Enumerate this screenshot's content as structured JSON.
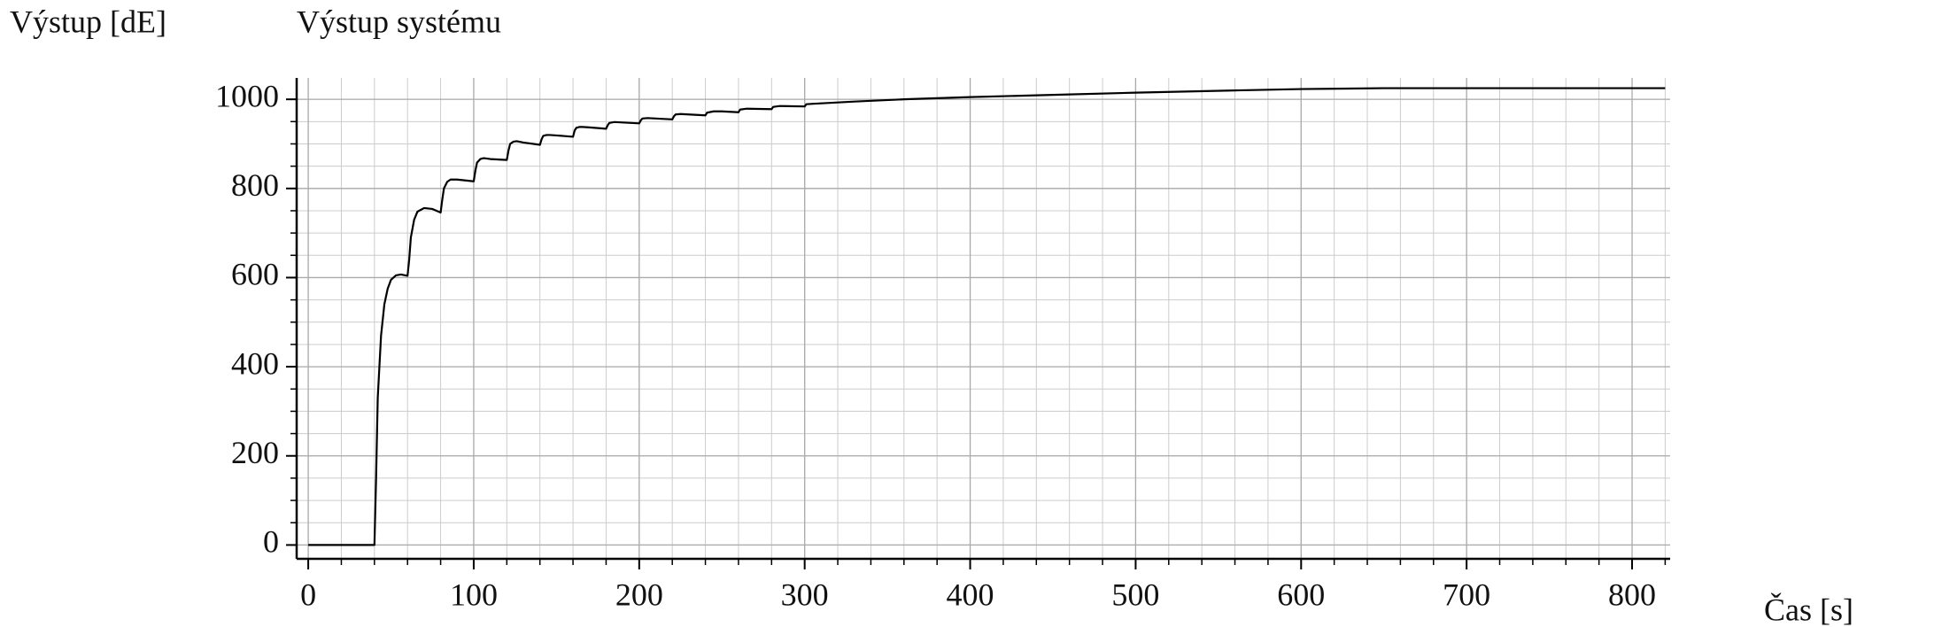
{
  "chart_data": {
    "type": "line",
    "title": "Výstup systému",
    "y_label": "Výstup [dE]",
    "x_label": "Čas [s]",
    "x": [
      0,
      40,
      41,
      42,
      44,
      46,
      48,
      50,
      53,
      56,
      60,
      61,
      62,
      64,
      66,
      70,
      75,
      80,
      81,
      82,
      84,
      86,
      90,
      95,
      100,
      101,
      102,
      104,
      106,
      110,
      120,
      121,
      122,
      124,
      126,
      130,
      140,
      141,
      142,
      144,
      146,
      150,
      160,
      161,
      162,
      164,
      166,
      170,
      180,
      181,
      182,
      185,
      190,
      200,
      201,
      202,
      205,
      210,
      220,
      221,
      222,
      225,
      230,
      240,
      241,
      245,
      250,
      260,
      261,
      265,
      280,
      281,
      285,
      300,
      301,
      305,
      330,
      360,
      400,
      450,
      500,
      560,
      600,
      650,
      700,
      820
    ],
    "values": [
      0,
      0,
      150,
      330,
      470,
      540,
      575,
      595,
      605,
      607,
      604,
      640,
      690,
      730,
      748,
      756,
      754,
      746,
      775,
      800,
      815,
      820,
      820,
      818,
      816,
      840,
      858,
      866,
      868,
      866,
      864,
      885,
      900,
      905,
      906,
      903,
      898,
      910,
      918,
      920,
      920,
      919,
      916,
      930,
      936,
      938,
      938,
      937,
      934,
      942,
      947,
      949,
      948,
      946,
      953,
      957,
      958,
      957,
      955,
      962,
      966,
      967,
      966,
      964,
      970,
      973,
      973,
      971,
      977,
      979,
      978,
      983,
      985,
      984,
      989,
      990,
      995,
      1000,
      1005,
      1010,
      1015,
      1020,
      1023,
      1025,
      1025,
      1025
    ],
    "color": "#000000",
    "xlim": [
      -7,
      823
    ],
    "ylim": [
      -31,
      1048
    ],
    "xticks": [
      0,
      100,
      200,
      300,
      400,
      500,
      600,
      700,
      800
    ],
    "yticks": [
      0,
      200,
      400,
      600,
      800,
      1000
    ],
    "grid": true,
    "minor_step": {
      "x": 20,
      "y": 50
    }
  }
}
